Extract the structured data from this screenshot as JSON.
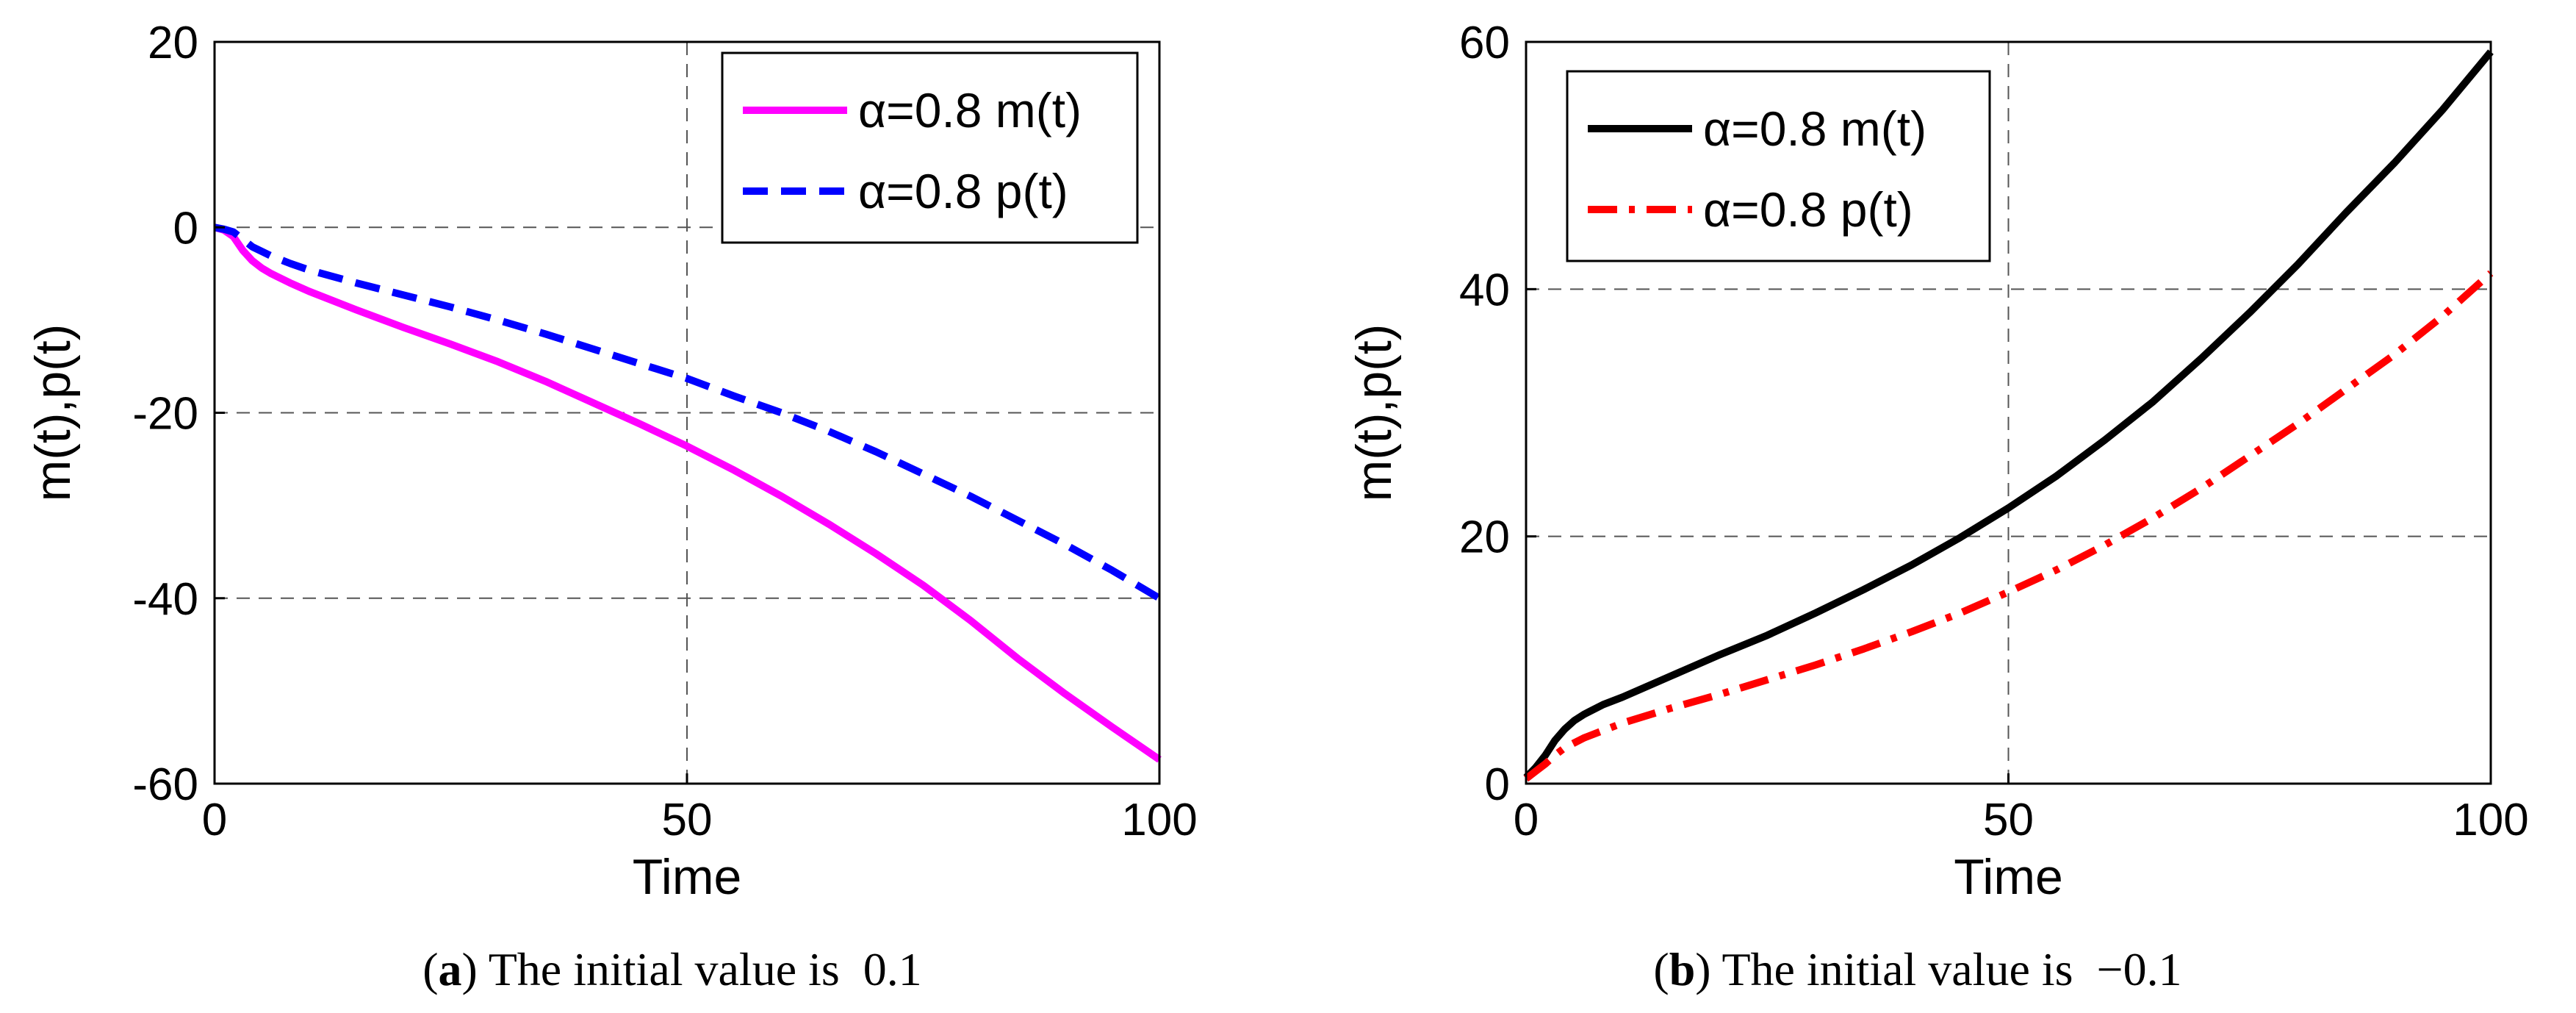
{
  "chart_data": [
    {
      "type": "line",
      "panel": "a",
      "xlabel": "Time",
      "ylabel": "m(t),p(t)",
      "xlim": [
        0,
        100
      ],
      "ylim": [
        -60,
        20
      ],
      "xticks": [
        0,
        50,
        100
      ],
      "yticks": [
        -60,
        -40,
        -20,
        0,
        20
      ],
      "x": [
        0,
        1,
        2,
        3,
        4,
        5,
        6,
        8,
        10,
        15,
        20,
        25,
        30,
        35,
        40,
        45,
        50,
        55,
        60,
        65,
        70,
        75,
        80,
        85,
        90,
        95,
        100
      ],
      "series": [
        {
          "name": "m(t)",
          "legend_label": "α=0.8 m(t)",
          "color": "#ff00ff",
          "style": "solid",
          "values": [
            0,
            -0.3,
            -1.0,
            -2.5,
            -3.6,
            -4.4,
            -5.0,
            -6.0,
            -6.9,
            -8.9,
            -10.8,
            -12.6,
            -14.5,
            -16.6,
            -18.9,
            -21.2,
            -23.6,
            -26.2,
            -29.0,
            -32.0,
            -35.2,
            -38.6,
            -42.4,
            -46.5,
            -50.3,
            -53.9,
            -57.4
          ]
        },
        {
          "name": "p(t)",
          "legend_label": "α=0.8 p(t)",
          "color": "#0000ff",
          "style": "dashed",
          "values": [
            0,
            -0.2,
            -0.5,
            -1.3,
            -2.1,
            -2.6,
            -3.1,
            -3.9,
            -4.6,
            -6.0,
            -7.3,
            -8.6,
            -10.0,
            -11.5,
            -13.1,
            -14.7,
            -16.3,
            -18.2,
            -20.0,
            -22.0,
            -24.2,
            -26.6,
            -29.0,
            -31.6,
            -34.2,
            -37.0,
            -40.0
          ]
        }
      ],
      "legend_position": "top-right",
      "grid": true
    },
    {
      "type": "line",
      "panel": "b",
      "xlabel": "Time",
      "ylabel": "m(t),p(t)",
      "xlim": [
        0,
        100
      ],
      "ylim": [
        0,
        60
      ],
      "xticks": [
        0,
        50,
        100
      ],
      "yticks": [
        0,
        20,
        40,
        60
      ],
      "x": [
        0,
        1,
        2,
        3,
        4,
        5,
        6,
        8,
        10,
        15,
        20,
        25,
        30,
        35,
        40,
        45,
        50,
        55,
        60,
        65,
        70,
        75,
        80,
        85,
        90,
        95,
        100
      ],
      "series": [
        {
          "name": "m(t)",
          "legend_label": "α=0.8 m(t)",
          "color": "#000000",
          "style": "solid",
          "values": [
            0.5,
            1.3,
            2.3,
            3.5,
            4.4,
            5.1,
            5.6,
            6.4,
            7.0,
            8.7,
            10.4,
            12.0,
            13.8,
            15.7,
            17.7,
            19.9,
            22.3,
            24.9,
            27.8,
            30.9,
            34.4,
            38.1,
            42.0,
            46.2,
            50.2,
            54.5,
            59.2
          ]
        },
        {
          "name": "p(t)",
          "legend_label": "α=0.8 p(t)",
          "color": "#ff0000",
          "style": "dash-dot",
          "values": [
            0.4,
            1.0,
            1.6,
            2.3,
            2.9,
            3.3,
            3.7,
            4.3,
            4.9,
            6.1,
            7.2,
            8.4,
            9.6,
            10.9,
            12.3,
            13.8,
            15.5,
            17.3,
            19.3,
            21.5,
            23.9,
            26.5,
            29.1,
            31.9,
            34.7,
            37.8,
            41.3
          ]
        }
      ],
      "legend_position": "top-left",
      "grid": true
    }
  ],
  "captions": [
    {
      "letter": "a",
      "open": "(",
      "close": ")",
      "text": " The initial value is  0.1"
    },
    {
      "letter": "b",
      "open": "(",
      "close": ")",
      "text": " The initial value is  −0.1"
    }
  ]
}
